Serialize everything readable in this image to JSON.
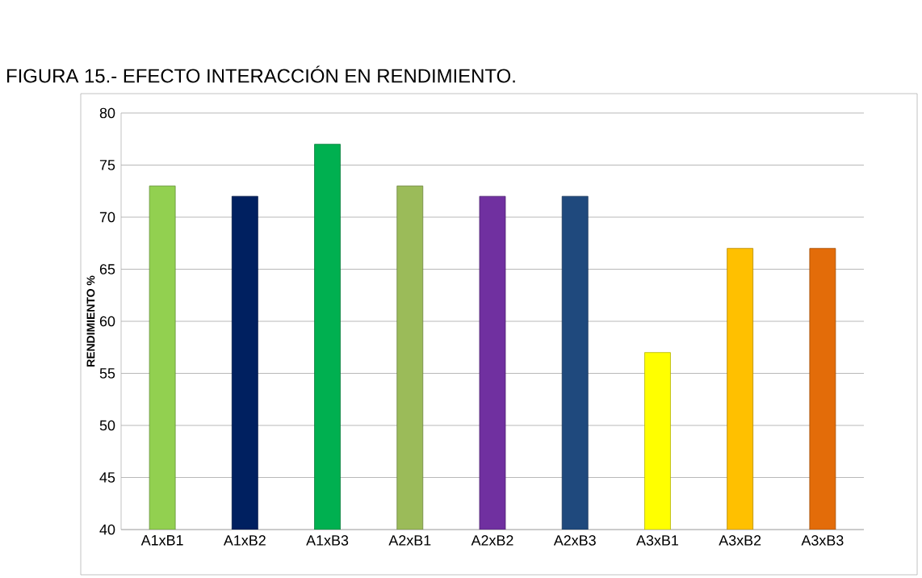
{
  "chart_data": {
    "type": "bar",
    "title": "FIGURA 15.- EFECTO INTERACCIÓN EN RENDIMIENTO.",
    "ylabel": "RENDIMIENTO %",
    "categories": [
      "A1xB1",
      "A1xB2",
      "A1xB3",
      "A2xB1",
      "A2xB2",
      "A2xB3",
      "A3xB1",
      "A3xB2",
      "A3xB3"
    ],
    "values": [
      73,
      72,
      77,
      73,
      72,
      72,
      57,
      67,
      67
    ],
    "colors": [
      "#92d050",
      "#002060",
      "#00b050",
      "#9bbb59",
      "#7030a0",
      "#1f497d",
      "#ffff00",
      "#ffc000",
      "#e36c09"
    ],
    "ylim": [
      40,
      80
    ],
    "yticks": [
      40,
      45,
      50,
      55,
      60,
      65,
      70,
      75,
      80
    ],
    "grid": "y"
  }
}
